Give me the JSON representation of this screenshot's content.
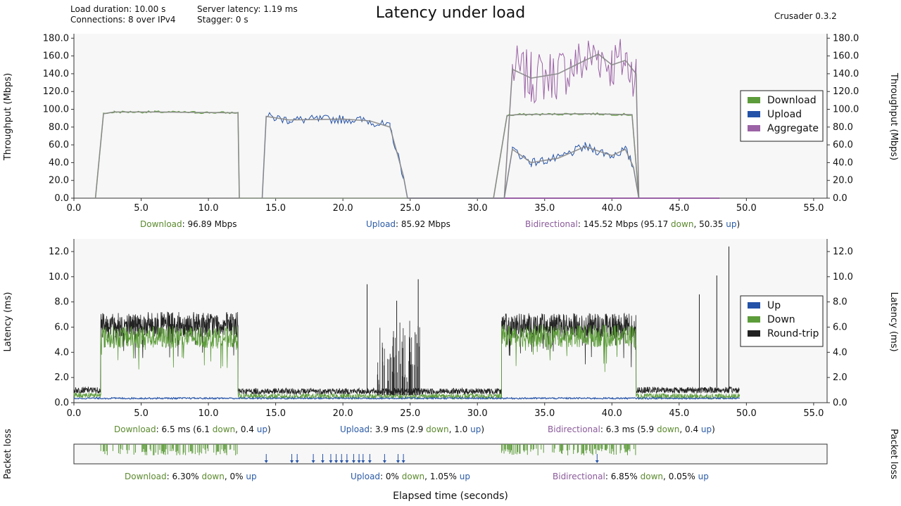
{
  "header": {
    "load_duration": "Load duration: 10.00 s",
    "connections": "Connections: 8 over IPv4",
    "server_latency": "Server latency: 1.19 ms",
    "stagger": "Stagger: 0 s",
    "title": "Latency under load",
    "version": "Crusader 0.3.2"
  },
  "colors": {
    "download": "#5d9c3a",
    "upload": "#2452a8",
    "aggregate": "#9b62a6",
    "roundtrip": "#222222",
    "average": "#888888",
    "plot_bg": "#f7f7f7"
  },
  "xlabel": "Elapsed time (seconds)",
  "chart_data": [
    {
      "type": "line",
      "name": "throughput",
      "ylabel": "Throughput (Mbps)",
      "xlim": [
        0,
        56
      ],
      "ylim": [
        0,
        185
      ],
      "x_ticks": [
        "0.0",
        "5.0",
        "10.0",
        "15.0",
        "20.0",
        "25.0",
        "30.0",
        "35.0",
        "40.0",
        "45.0",
        "50.0",
        "55.0"
      ],
      "y_ticks": [
        "0.0",
        "20.0",
        "40.0",
        "60.0",
        "80.0",
        "100.0",
        "120.0",
        "140.0",
        "160.0",
        "180.0"
      ],
      "legend": [
        "Download",
        "Upload",
        "Aggregate"
      ],
      "legend_position": "right",
      "series": [
        {
          "name": "Download",
          "points": [
            [
              1.6,
              0
            ],
            [
              2.2,
              95
            ],
            [
              3,
              97
            ],
            [
              6,
              97
            ],
            [
              9,
              96.5
            ],
            [
              12.2,
              96
            ],
            [
              12.3,
              0
            ],
            [
              31.2,
              0
            ],
            [
              32.2,
              93
            ],
            [
              33,
              94
            ],
            [
              38,
              95
            ],
            [
              41.5,
              94
            ],
            [
              42,
              0
            ]
          ]
        },
        {
          "name": "Upload",
          "points": [
            [
              14,
              0
            ],
            [
              14.3,
              92
            ],
            [
              16,
              88
            ],
            [
              20,
              89
            ],
            [
              22,
              87
            ],
            [
              23.5,
              80
            ],
            [
              24.5,
              25
            ],
            [
              24.8,
              0
            ],
            [
              32,
              0
            ],
            [
              32.6,
              55
            ],
            [
              34,
              40
            ],
            [
              36,
              45
            ],
            [
              38,
              58
            ],
            [
              40,
              48
            ],
            [
              41,
              55
            ],
            [
              41.6,
              35
            ],
            [
              42,
              0
            ]
          ]
        },
        {
          "name": "Aggregate",
          "points": [
            [
              32,
              0
            ],
            [
              32.6,
              145
            ],
            [
              34,
              135
            ],
            [
              36,
              140
            ],
            [
              38,
              155
            ],
            [
              39,
              162
            ],
            [
              40,
              150
            ],
            [
              41,
              155
            ],
            [
              41.8,
              140
            ],
            [
              42,
              0
            ]
          ]
        }
      ],
      "summary": {
        "download": "96.89 Mbps",
        "upload": "85.92 Mbps",
        "bidirectional": "145.52 Mbps",
        "bidirectional_down": "95.17",
        "bidirectional_up": "50.35"
      }
    },
    {
      "type": "line",
      "name": "latency",
      "ylabel": "Latency (ms)",
      "xlim": [
        0,
        56
      ],
      "ylim": [
        0,
        13
      ],
      "x_ticks": [
        "0.0",
        "5.0",
        "10.0",
        "15.0",
        "20.0",
        "25.0",
        "30.0",
        "35.0",
        "40.0",
        "45.0",
        "50.0",
        "55.0"
      ],
      "y_ticks": [
        "0.0",
        "2.0",
        "4.0",
        "6.0",
        "8.0",
        "10.0",
        "12.0"
      ],
      "legend": [
        "Up",
        "Down",
        "Round-trip"
      ],
      "legend_position": "right",
      "series": [
        {
          "name": "Up",
          "baseline": 0.35
        },
        {
          "name": "Down",
          "segments": [
            [
              0,
              2,
              0.6
            ],
            [
              2,
              12.2,
              5.2
            ],
            [
              12.2,
              31.8,
              0.5
            ],
            [
              31.8,
              41.8,
              5.3
            ],
            [
              41.8,
              49.5,
              0.5
            ]
          ]
        },
        {
          "name": "Round-trip",
          "segments": [
            [
              0,
              2,
              1.0
            ],
            [
              2,
              12.2,
              6.2
            ],
            [
              12.2,
              31.8,
              0.9
            ],
            [
              31.8,
              41.8,
              6.1
            ],
            [
              41.8,
              49.5,
              1.0
            ]
          ],
          "spikes": [
            [
              21.8,
              9.4
            ],
            [
              24,
              8.1
            ],
            [
              25.6,
              9.8
            ],
            [
              46.5,
              8.6
            ],
            [
              47.8,
              10.1
            ],
            [
              48.7,
              12.4
            ]
          ]
        }
      ],
      "summary": {
        "download": "6.5 ms",
        "download_down": "6.1",
        "download_up": "0.4",
        "upload": "3.9 ms",
        "upload_down": "2.9",
        "upload_up": "1.0",
        "bidirectional": "6.3 ms",
        "bidirectional_down": "5.9",
        "bidirectional_up": "0.4"
      }
    },
    {
      "type": "scatter",
      "name": "packet_loss",
      "ylabel": "Packet loss",
      "xlim": [
        0,
        56
      ],
      "down_loss_ranges": [
        [
          2,
          12.2
        ],
        [
          31.8,
          41.8
        ]
      ],
      "up_loss_events": [
        14.3,
        16.2,
        16.6,
        17.8,
        18.5,
        19.1,
        19.5,
        19.9,
        20.3,
        20.8,
        21.2,
        21.5,
        22,
        23.1,
        24.1,
        24.5,
        38.9
      ],
      "summary": {
        "download": "6.30%",
        "download_up": "0%",
        "upload": "0%",
        "upload_up": "1.05%",
        "bidirectional": "6.85%",
        "bidirectional_up": "0.05%"
      }
    }
  ],
  "labels": {
    "download": "Download",
    "upload": "Upload",
    "bidirectional": "Bidirectional",
    "down": "down",
    "up": "up"
  }
}
